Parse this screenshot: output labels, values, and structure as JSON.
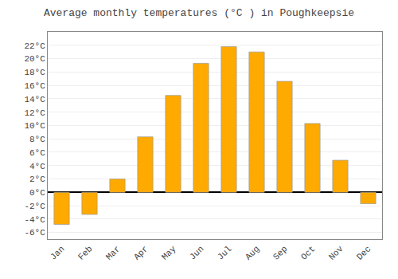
{
  "chart_data": {
    "type": "bar",
    "title": "Average monthly temperatures (°C ) in Poughkeepsie",
    "categories": [
      "Jan",
      "Feb",
      "Mar",
      "Apr",
      "May",
      "Jun",
      "Jul",
      "Aug",
      "Sep",
      "Oct",
      "Nov",
      "Dec"
    ],
    "values": [
      -4.8,
      -3.3,
      2.0,
      8.3,
      14.5,
      19.3,
      21.8,
      21.0,
      16.6,
      10.3,
      4.8,
      -1.7
    ],
    "color": "#FFAA00",
    "ylim": [
      -7,
      24
    ],
    "yticks": [
      {
        "value": -6,
        "label": "-6°C"
      },
      {
        "value": -4,
        "label": "-4°C"
      },
      {
        "value": -2,
        "label": "-2°C"
      },
      {
        "value": 0,
        "label": "0°C"
      },
      {
        "value": 2,
        "label": "2°C"
      },
      {
        "value": 4,
        "label": "4°C"
      },
      {
        "value": 6,
        "label": "6°C"
      },
      {
        "value": 8,
        "label": "8°C"
      },
      {
        "value": 10,
        "label": "10°C"
      },
      {
        "value": 12,
        "label": "12°C"
      },
      {
        "value": 14,
        "label": "14°C"
      },
      {
        "value": 16,
        "label": "16°C"
      },
      {
        "value": 18,
        "label": "18°C"
      },
      {
        "value": 20,
        "label": "20°C"
      },
      {
        "value": 22,
        "label": "22°C"
      }
    ],
    "grid": true
  }
}
